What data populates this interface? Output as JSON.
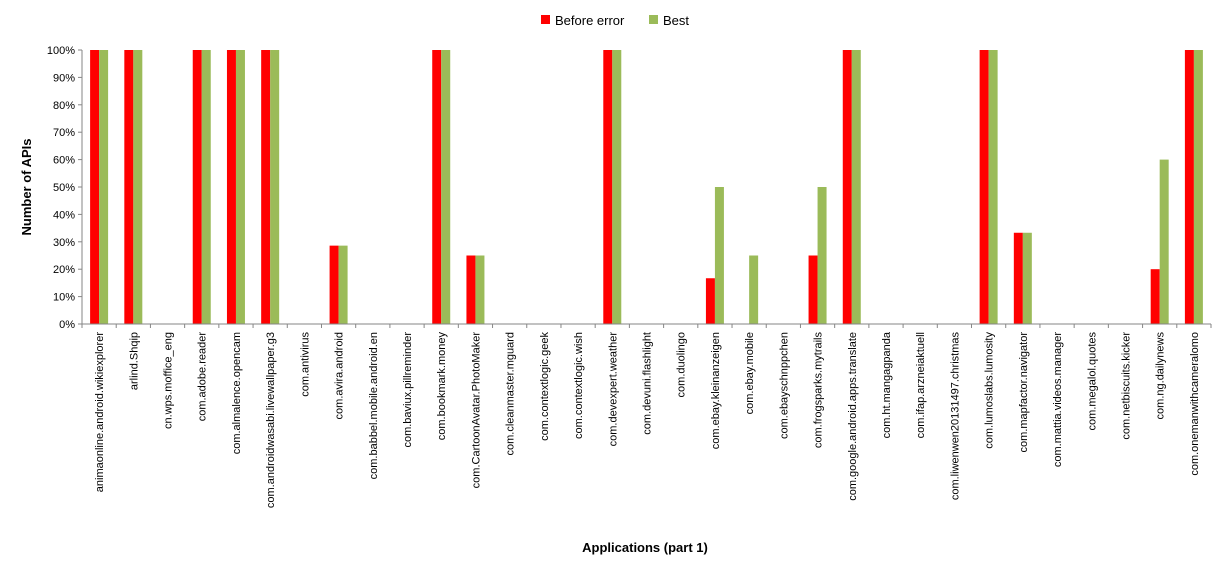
{
  "chart_data": {
    "type": "bar",
    "xlabel": "Applications (part 1)",
    "ylabel": "Number of APIs",
    "ylim": [
      0,
      100
    ],
    "yticks": [
      "0%",
      "10%",
      "20%",
      "30%",
      "40%",
      "50%",
      "60%",
      "70%",
      "80%",
      "90%",
      "100%"
    ],
    "legend_position": "top-center",
    "grid": false,
    "categories": [
      "animaonline.android.wikiexplorer",
      "arlind.Shqip",
      "cn.wps.moffice_eng",
      "com.adobe.reader",
      "com.almalence.opencam",
      "com.androidwasabi.livewallpaper.g3",
      "com.antivirus",
      "com.avira.android",
      "com.babbel.mobile.android.en",
      "com.baviux.pillreminder",
      "com.bookmark.money",
      "com.CartoonAvatar.PhotoMaker",
      "com.cleanmaster.mguard",
      "com.contextlogic.geek",
      "com.contextlogic.wish",
      "com.devexpert.weather",
      "com.devuni.flashlight",
      "com.duolingo",
      "com.ebay.kleinanzeigen",
      "com.ebay.mobile",
      "com.ebayschnppchen",
      "com.frogsparks.mytrails",
      "com.google.android.apps.translate",
      "com.ht.mangagpanda",
      "com.ifap.arzneiaktuell",
      "com.liwenwen20131497.christmas",
      "com.lumoslabs.lumosity",
      "com.mapfactor.navigator",
      "com.mattia.videos.manager",
      "com.megalol.quotes",
      "com.netbiscuits.kicker",
      "com.ng.dailynews",
      "com.onemanwithcameralomo"
    ],
    "series": [
      {
        "name": "Before error",
        "color": "#ff0000",
        "values": [
          100,
          100,
          0,
          100,
          100,
          100,
          0,
          28.6,
          0,
          0,
          100,
          25,
          0,
          0,
          0,
          100,
          0,
          0,
          16.7,
          0,
          0,
          25,
          100,
          0,
          0,
          0,
          100,
          33.3,
          0,
          0,
          0,
          20,
          100
        ]
      },
      {
        "name": "Best",
        "color": "#9bbb59",
        "values": [
          100,
          100,
          0,
          100,
          100,
          100,
          0,
          28.6,
          0,
          0,
          100,
          25,
          0,
          0,
          0,
          100,
          0,
          0,
          50,
          25,
          0,
          50,
          100,
          0,
          0,
          0,
          100,
          33.3,
          0,
          0,
          0,
          60,
          100
        ]
      }
    ]
  }
}
